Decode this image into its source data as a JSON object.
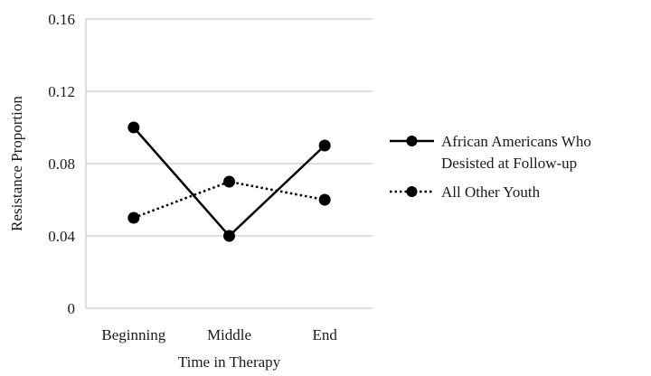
{
  "chart_data": {
    "type": "line",
    "title": "",
    "xlabel": "Time in Therapy",
    "ylabel": "Resistance Proportion",
    "categories": [
      "Beginning",
      "Middle",
      "End"
    ],
    "ylim": [
      0,
      0.16
    ],
    "yticks": [
      0,
      0.04,
      0.08,
      0.12,
      0.16
    ],
    "ytick_labels": [
      "0",
      "0.04",
      "0.08",
      "0.12",
      "0.16"
    ],
    "grid": true,
    "legend_position": "right",
    "series": [
      {
        "name": "African Americans Who Desisted at Follow-up",
        "name_lines": [
          "African Americans Who",
          "Desisted at Follow-up"
        ],
        "values": [
          0.1,
          0.04,
          0.09
        ],
        "line_style": "solid",
        "marker": "circle",
        "color": "#000000"
      },
      {
        "name": "All Other Youth",
        "name_lines": [
          "All Other Youth"
        ],
        "values": [
          0.05,
          0.07,
          0.06
        ],
        "line_style": "dotted",
        "marker": "circle",
        "color": "#000000"
      }
    ],
    "colors": {
      "grid": "#bfbfbf",
      "axis": "#bfbfbf"
    }
  }
}
